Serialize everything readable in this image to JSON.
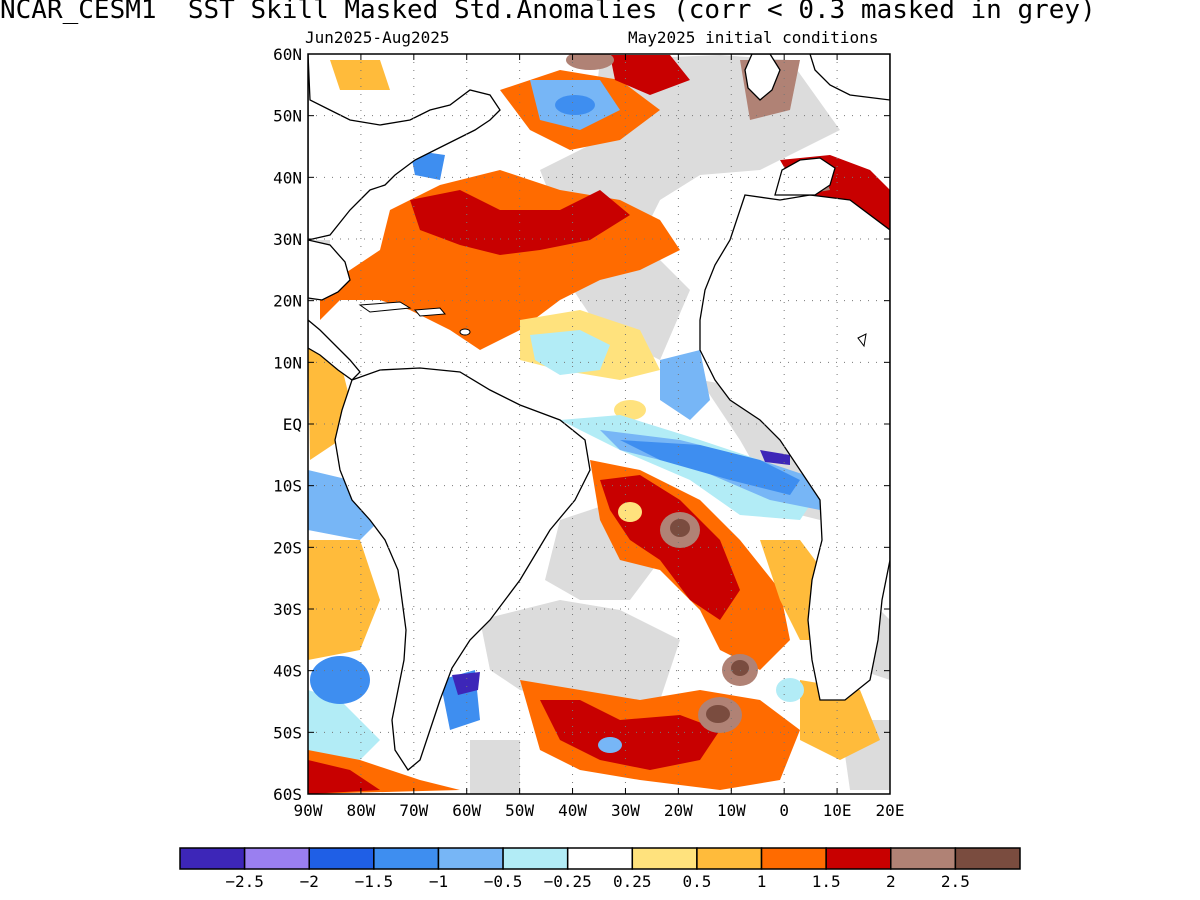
{
  "title": "NCAR_CESM1  SST Skill Masked Std.Anomalies (corr < 0.3 masked in grey)",
  "subtitle_left": "Jun2025-Aug2025",
  "subtitle_right": "May2025 initial conditions",
  "lat_labels": [
    "60N",
    "50N",
    "40N",
    "30N",
    "20N",
    "10N",
    "EQ",
    "10S",
    "20S",
    "30S",
    "40S",
    "50S",
    "60S"
  ],
  "lon_labels": [
    "90W",
    "80W",
    "70W",
    "60W",
    "50W",
    "40W",
    "30W",
    "20W",
    "10W",
    "0",
    "10E",
    "20E"
  ],
  "colorbar": {
    "colors": [
      "#3d26b8",
      "#9a7ff0",
      "#1f5fe6",
      "#3e8ef0",
      "#77b6f6",
      "#b2ecf6",
      "#ffffff",
      "#ffe27d",
      "#ffbb3b",
      "#ff6b00",
      "#c80000",
      "#b08275",
      "#7a4c3f"
    ],
    "tick_labels": [
      "-2.5",
      "-2",
      "-1.5",
      "-1",
      "-0.5",
      "-0.25",
      "0.25",
      "0.5",
      "1",
      "1.5",
      "2",
      "2.5"
    ]
  },
  "colors": {
    "mask_grey": "#dcdcdc",
    "land": "#ffffff",
    "coast": "#000000"
  }
}
